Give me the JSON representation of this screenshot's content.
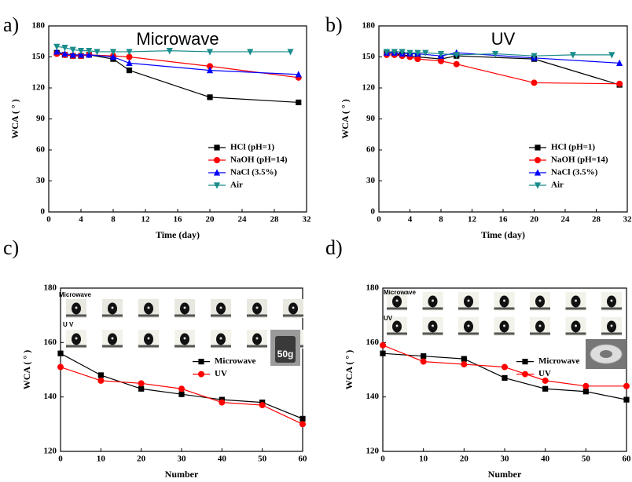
{
  "chart_data": [
    {
      "type": "line",
      "panel_label": "a)",
      "title": "Microwave",
      "xlabel": "Time (day)",
      "ylabel": "WCA ( ° )",
      "xlim": [
        0,
        32
      ],
      "xticks": [
        0,
        4,
        8,
        12,
        16,
        20,
        24,
        28,
        32
      ],
      "ylim": [
        0,
        180
      ],
      "yticks": [
        0,
        30,
        60,
        90,
        120,
        150,
        180
      ],
      "legend": "lower right",
      "series": [
        {
          "name": "HCl (pH=1)",
          "color": "#000000",
          "marker": "square",
          "x": [
            1,
            2,
            3,
            4,
            5,
            8,
            10,
            20,
            31
          ],
          "values": [
            154,
            152,
            151,
            151,
            152,
            148,
            137,
            111,
            106
          ]
        },
        {
          "name": "NaOH (pH=14)",
          "color": "#ff0000",
          "marker": "circle",
          "x": [
            1,
            2,
            3,
            4,
            5,
            8,
            10,
            20,
            31
          ],
          "values": [
            153,
            152,
            151,
            151,
            152,
            151,
            150,
            141,
            130
          ]
        },
        {
          "name": "NaCl (3.5%)",
          "color": "#0000ff",
          "marker": "triangle-up",
          "x": [
            1,
            2,
            3,
            4,
            5,
            8,
            10,
            20,
            31
          ],
          "values": [
            155,
            153,
            152,
            152,
            152,
            150,
            144,
            137,
            133
          ]
        },
        {
          "name": "Air",
          "color": "#1a8c8c",
          "marker": "triangle-down",
          "x": [
            1,
            2,
            3,
            4,
            5,
            6,
            8,
            10,
            15,
            20,
            25,
            30
          ],
          "values": [
            160,
            159,
            157,
            156,
            156,
            155,
            155,
            155,
            156,
            155,
            155,
            155
          ]
        }
      ]
    },
    {
      "type": "line",
      "panel_label": "b)",
      "title": "UV",
      "xlabel": "Time (day)",
      "ylabel": "WCA ( ° )",
      "xlim": [
        0,
        32
      ],
      "xticks": [
        0,
        4,
        8,
        12,
        16,
        20,
        24,
        28,
        32
      ],
      "ylim": [
        0,
        180
      ],
      "yticks": [
        0,
        30,
        60,
        90,
        120,
        150,
        180
      ],
      "legend": "lower right",
      "series": [
        {
          "name": "HCl (pH=1)",
          "color": "#000000",
          "marker": "square",
          "x": [
            1,
            2,
            3,
            4,
            5,
            8,
            10,
            20,
            31
          ],
          "values": [
            154,
            153,
            152,
            151,
            150,
            148,
            151,
            148,
            123
          ]
        },
        {
          "name": "NaOH (pH=14)",
          "color": "#ff0000",
          "marker": "circle",
          "x": [
            1,
            2,
            3,
            4,
            5,
            8,
            10,
            20,
            31
          ],
          "values": [
            152,
            152,
            151,
            150,
            148,
            146,
            143,
            125,
            124
          ]
        },
        {
          "name": "NaCl (3.5%)",
          "color": "#0000ff",
          "marker": "triangle-up",
          "x": [
            1,
            2,
            3,
            4,
            5,
            8,
            10,
            20,
            31
          ],
          "values": [
            154,
            154,
            153,
            153,
            153,
            151,
            154,
            149,
            144
          ]
        },
        {
          "name": "Air",
          "color": "#1a8c8c",
          "marker": "triangle-down",
          "x": [
            1,
            2,
            3,
            4,
            5,
            6,
            8,
            10,
            15,
            20,
            25,
            30
          ],
          "values": [
            155,
            155,
            155,
            154,
            154,
            154,
            153,
            152,
            153,
            151,
            152,
            152
          ]
        }
      ]
    },
    {
      "type": "line",
      "panel_label": "c)",
      "xlabel": "Number",
      "ylabel": "WCA ( ° )",
      "x": [
        0,
        10,
        20,
        30,
        40,
        50,
        60
      ],
      "xlim": [
        0,
        60
      ],
      "xticks": [
        0,
        10,
        20,
        30,
        40,
        50,
        60
      ],
      "ylim": [
        120,
        180
      ],
      "yticks": [
        120,
        140,
        160,
        180
      ],
      "legend": "center right",
      "inset_labels": [
        "Microwave",
        "U V",
        "50g"
      ],
      "series": [
        {
          "name": "Microwave",
          "color": "#000000",
          "marker": "square",
          "values": [
            156,
            148,
            143,
            141,
            139,
            138,
            132
          ]
        },
        {
          "name": "UV",
          "color": "#ff0000",
          "marker": "circle",
          "values": [
            151,
            146,
            145,
            143,
            138,
            137,
            130
          ]
        }
      ]
    },
    {
      "type": "line",
      "panel_label": "d)",
      "xlabel": "Number",
      "ylabel": "WCA ( ° )",
      "x": [
        0,
        10,
        20,
        30,
        40,
        50,
        60
      ],
      "xlim": [
        0,
        60
      ],
      "xticks": [
        0,
        10,
        20,
        30,
        40,
        50,
        60
      ],
      "ylim": [
        120,
        180
      ],
      "yticks": [
        120,
        140,
        160,
        180
      ],
      "legend": "center right",
      "inset_labels": [
        "Microwave",
        "UV"
      ],
      "series": [
        {
          "name": "Microwave",
          "color": "#000000",
          "marker": "square",
          "values": [
            156,
            155,
            154,
            147,
            143,
            142,
            139
          ]
        },
        {
          "name": "UV",
          "color": "#ff0000",
          "marker": "circle",
          "values": [
            159,
            153,
            152,
            151,
            146,
            144,
            144
          ]
        }
      ]
    }
  ]
}
